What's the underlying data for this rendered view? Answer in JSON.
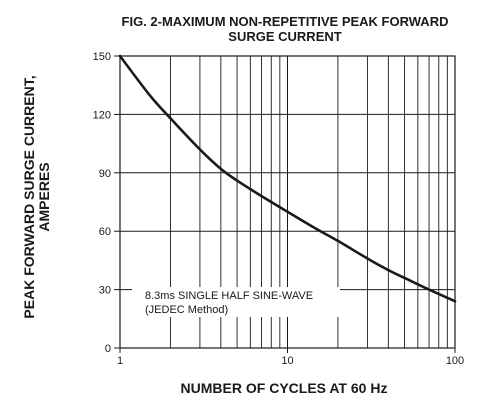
{
  "chart_data": {
    "type": "line",
    "title_lines": [
      "FIG. 2-MAXIMUM NON-REPETITIVE PEAK FORWARD",
      "SURGE CURRENT"
    ],
    "xlabel": "NUMBER OF CYCLES AT 60 Hz",
    "ylabel_lines": [
      "PEAK  FORWARD SURGE CURRENT,",
      "AMPERES"
    ],
    "x_scale": "log",
    "xlim": [
      1,
      100
    ],
    "ylim": [
      0,
      150
    ],
    "x_ticks": [
      {
        "value": 1,
        "label": "1"
      },
      {
        "value": 10,
        "label": "10"
      },
      {
        "value": 100,
        "label": "100"
      }
    ],
    "y_ticks": [
      {
        "value": 0,
        "label": "0"
      },
      {
        "value": 30,
        "label": "30"
      },
      {
        "value": 60,
        "label": "60"
      },
      {
        "value": 90,
        "label": "90"
      },
      {
        "value": 120,
        "label": "120"
      },
      {
        "value": 150,
        "label": "150"
      }
    ],
    "grid": true,
    "series": [
      {
        "x": [
          1,
          1.5,
          2,
          3,
          4,
          5,
          7,
          10,
          15,
          20,
          30,
          40,
          50,
          70,
          100
        ],
        "y": [
          150,
          130,
          118,
          102,
          92,
          86,
          78,
          70,
          61,
          55,
          46,
          40,
          36,
          30,
          24
        ]
      }
    ],
    "annotation_lines": [
      "8.3ms SINGLE HALF SINE-WAVE",
      "(JEDEC Method)"
    ]
  }
}
